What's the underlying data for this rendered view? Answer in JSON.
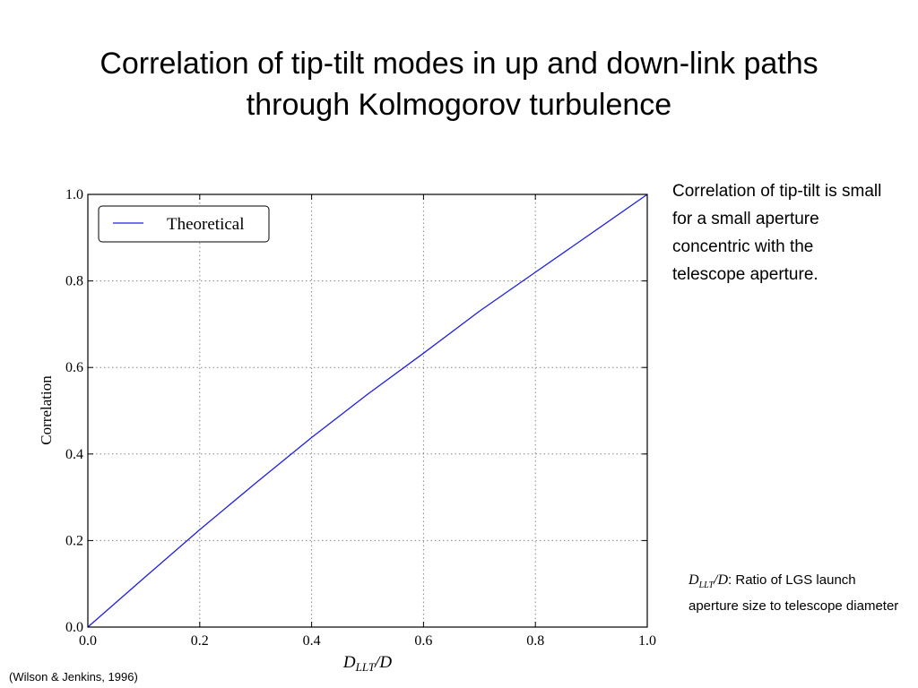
{
  "slide": {
    "title_line1": "Correlation of tip-tilt modes in up and down-link paths",
    "title_line2": "through Kolmogorov turbulence",
    "side_note": "Correlation of tip-tilt is small for a small aperture concentric with the telescope aperture.",
    "footnote_symbol": "D",
    "footnote_subscript": "LLT",
    "footnote_symbol_tail": "/D",
    "footnote_text": ": Ratio of LGS launch aperture size to telescope diameter",
    "citation": "(Wilson & Jenkins, 1996)"
  },
  "chart_data": {
    "type": "line",
    "title": "",
    "xlabel_main": "D",
    "xlabel_sub": "LLT",
    "xlabel_tail": "/D",
    "ylabel": "Correlation",
    "xlim": [
      0.0,
      1.0
    ],
    "ylim": [
      0.0,
      1.0
    ],
    "xticks": [
      "0.0",
      "0.2",
      "0.4",
      "0.6",
      "0.8",
      "1.0"
    ],
    "yticks": [
      "0.0",
      "0.2",
      "0.4",
      "0.6",
      "0.8",
      "1.0"
    ],
    "grid": true,
    "legend_position": "top-left",
    "series": [
      {
        "name": "Theoretical",
        "color": "#1f1fe0",
        "x": [
          0.0,
          0.1,
          0.2,
          0.3,
          0.4,
          0.5,
          0.6,
          0.7,
          0.8,
          0.9,
          1.0
        ],
        "y": [
          0.0,
          0.113,
          0.225,
          0.333,
          0.438,
          0.538,
          0.633,
          0.73,
          0.82,
          0.91,
          1.0
        ]
      }
    ]
  }
}
